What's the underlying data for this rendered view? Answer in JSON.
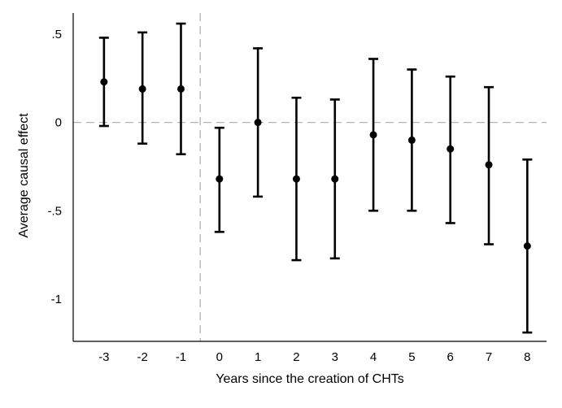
{
  "chart_data": {
    "type": "scatter",
    "title": "",
    "xlabel": "Years since the creation of CHTs",
    "ylabel": "Average causal effect",
    "x_ticks": [
      "-3",
      "-2",
      "-1",
      "0",
      "1",
      "2",
      "3",
      "4",
      "5",
      "6",
      "7",
      "8"
    ],
    "y_ticks": [
      {
        "value": 0.5,
        "label": ".5"
      },
      {
        "value": 0,
        "label": "0"
      },
      {
        "value": -0.5,
        "label": "-.5"
      },
      {
        "value": -1,
        "label": "-1"
      }
    ],
    "xlim": [
      -3.8,
      8.5
    ],
    "ylim": [
      -1.24,
      0.62
    ],
    "reference_lines": {
      "y": 0,
      "x": -0.5
    },
    "points": [
      {
        "x": -3,
        "estimate": 0.23,
        "ci_low": -0.02,
        "ci_high": 0.48
      },
      {
        "x": -2,
        "estimate": 0.19,
        "ci_low": -0.12,
        "ci_high": 0.51
      },
      {
        "x": -1,
        "estimate": 0.19,
        "ci_low": -0.18,
        "ci_high": 0.56
      },
      {
        "x": 0,
        "estimate": -0.32,
        "ci_low": -0.62,
        "ci_high": -0.03
      },
      {
        "x": 1,
        "estimate": 0.0,
        "ci_low": -0.42,
        "ci_high": 0.42
      },
      {
        "x": 2,
        "estimate": -0.32,
        "ci_low": -0.78,
        "ci_high": 0.14
      },
      {
        "x": 3,
        "estimate": -0.32,
        "ci_low": -0.77,
        "ci_high": 0.13
      },
      {
        "x": 4,
        "estimate": -0.07,
        "ci_low": -0.5,
        "ci_high": 0.36
      },
      {
        "x": 5,
        "estimate": -0.1,
        "ci_low": -0.5,
        "ci_high": 0.3
      },
      {
        "x": 6,
        "estimate": -0.15,
        "ci_low": -0.57,
        "ci_high": 0.26
      },
      {
        "x": 7,
        "estimate": -0.24,
        "ci_low": -0.69,
        "ci_high": 0.2
      },
      {
        "x": 8,
        "estimate": -0.7,
        "ci_low": -1.19,
        "ci_high": -0.21
      }
    ],
    "grid": false,
    "colors": {
      "marker": "#000000",
      "reference_line": "#aaaaaa",
      "axis": "#000000"
    }
  }
}
